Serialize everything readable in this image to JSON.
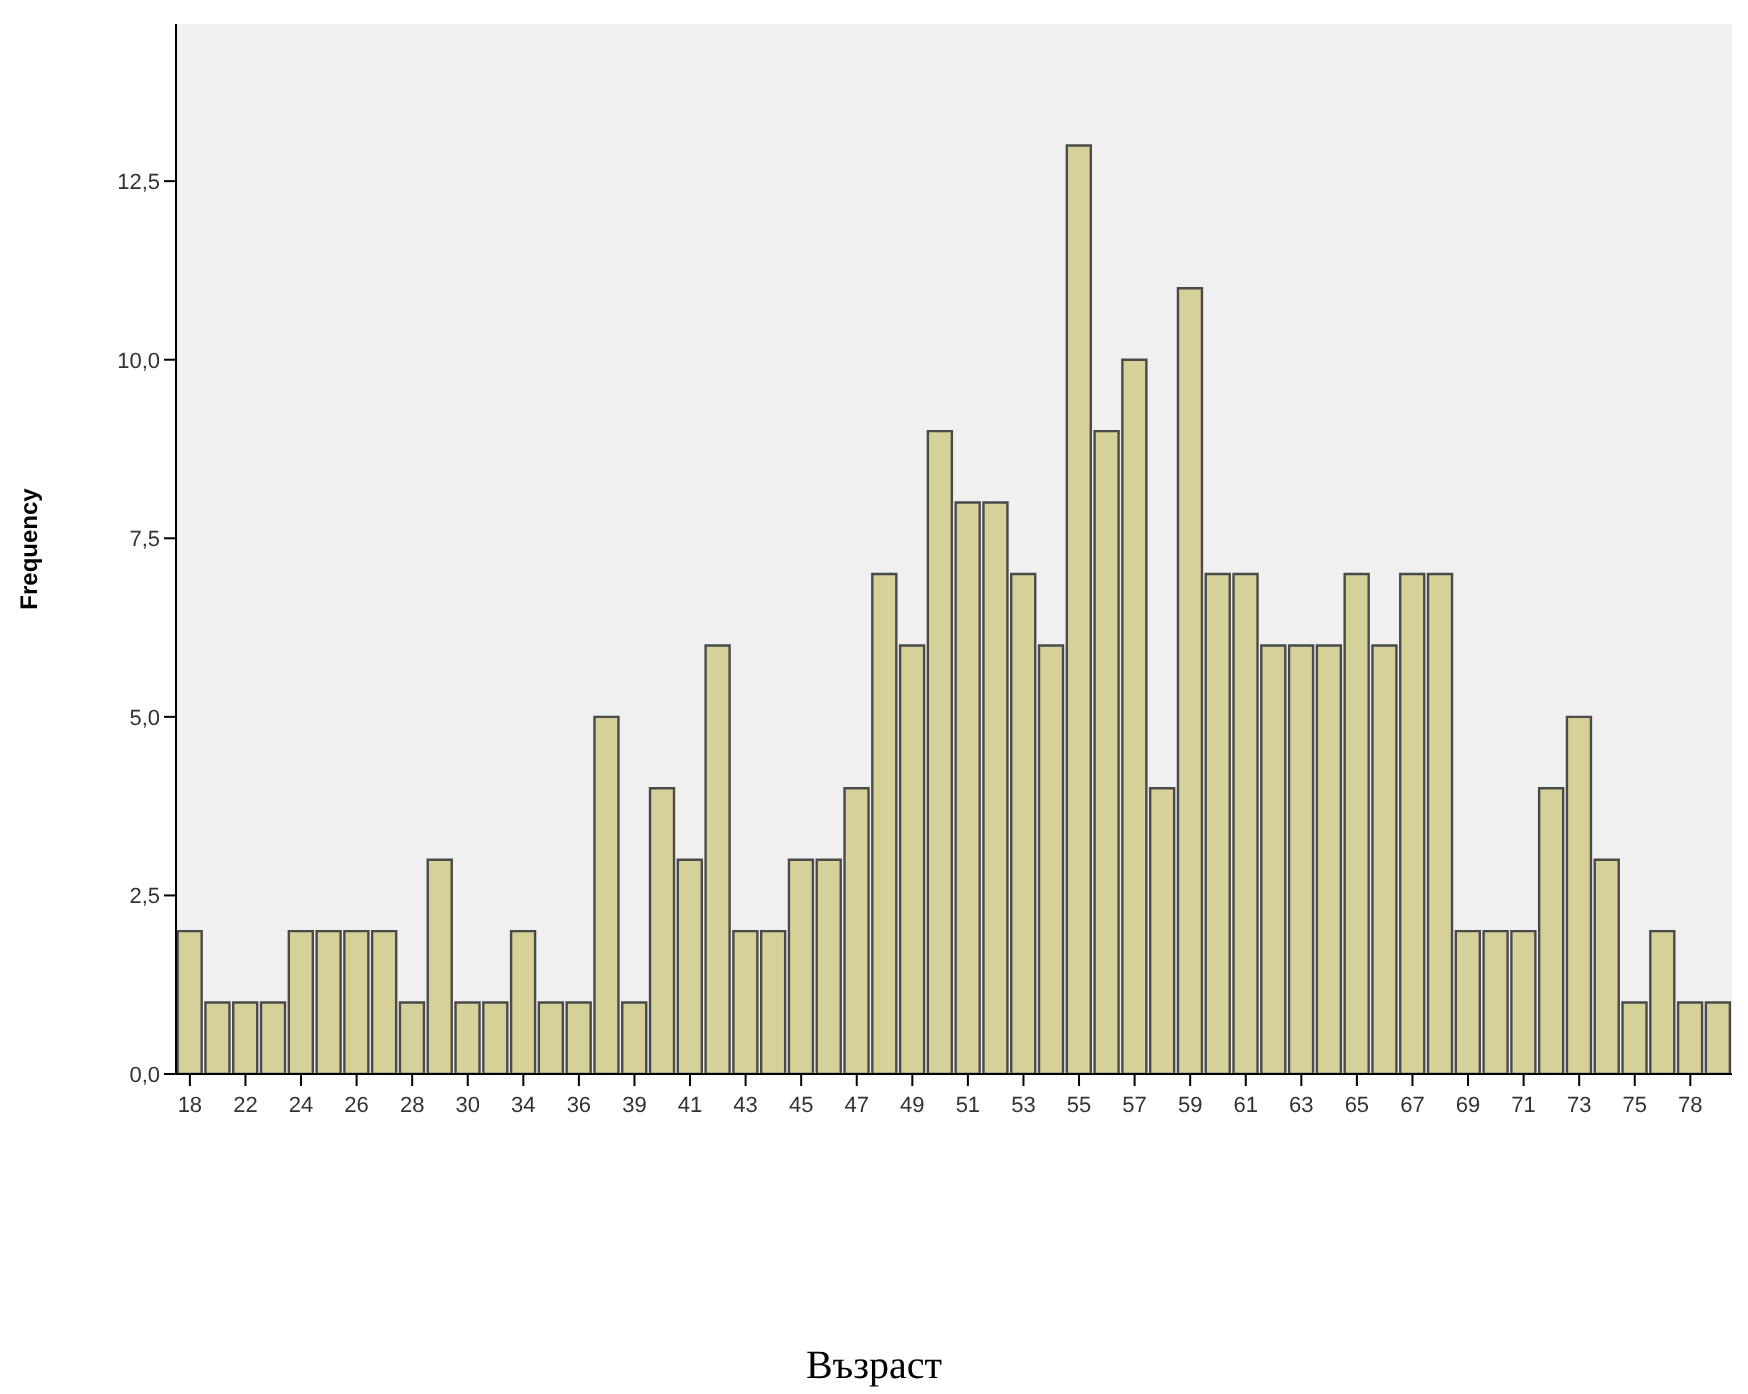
{
  "chart_data": {
    "type": "bar",
    "ylabel": "Frequency",
    "annotations": [
      "Възраст"
    ],
    "categories": [
      "18",
      null,
      "22",
      null,
      "24",
      null,
      "26",
      null,
      "28",
      null,
      "30",
      null,
      "34",
      null,
      "36",
      null,
      "39",
      null,
      "41",
      null,
      "43",
      null,
      "45",
      null,
      "47",
      null,
      "49",
      null,
      "51",
      null,
      "53",
      null,
      "55",
      null,
      "57",
      null,
      "59",
      null,
      "61",
      null,
      "63",
      null,
      "65",
      null,
      "67",
      null,
      "69",
      null,
      "71",
      null,
      "73",
      null,
      "75",
      null,
      "78",
      null
    ],
    "values": [
      2,
      1,
      1,
      1,
      2,
      2,
      2,
      2,
      1,
      3,
      1,
      1,
      2,
      1,
      1,
      5,
      1,
      4,
      3,
      6,
      2,
      2,
      3,
      3,
      4,
      7,
      6,
      9,
      8,
      8,
      7,
      6,
      13,
      9,
      10,
      4,
      11,
      7,
      7,
      6,
      6,
      6,
      7,
      6,
      7,
      7,
      2,
      2,
      2,
      4,
      5,
      3,
      1,
      2,
      1,
      1
    ],
    "color": "#d6d199",
    "ylim": [
      0,
      14.7
    ],
    "yticks": [
      {
        "value": 0,
        "label": "0,0"
      },
      {
        "value": 2.5,
        "label": "2,5"
      },
      {
        "value": 5,
        "label": "5,0"
      },
      {
        "value": 7.5,
        "label": "7,5"
      },
      {
        "value": 10,
        "label": "10,0"
      },
      {
        "value": 12.5,
        "label": "12,5"
      }
    ]
  }
}
